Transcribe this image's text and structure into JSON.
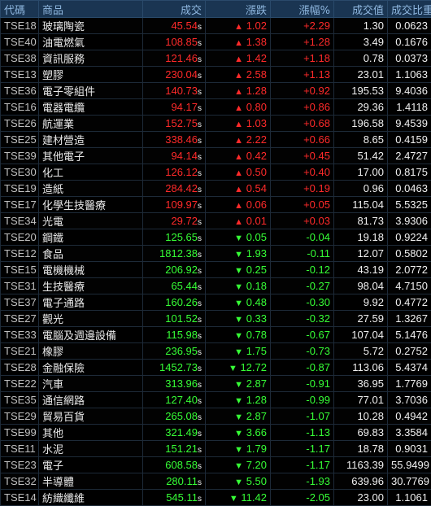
{
  "headers": [
    "代碼",
    "商品",
    "成交",
    "漲跌",
    "漲幅%",
    "成交值",
    "成交比重%"
  ],
  "rows": [
    {
      "code": "TSE18",
      "name": "玻璃陶瓷",
      "price": "45.54",
      "trend": "up",
      "change": "1.02",
      "pct": "+2.29",
      "value": "1.30",
      "weight": "0.0623"
    },
    {
      "code": "TSE40",
      "name": "油電燃氣",
      "price": "108.85",
      "trend": "up",
      "change": "1.38",
      "pct": "+1.28",
      "value": "3.49",
      "weight": "0.1676"
    },
    {
      "code": "TSE38",
      "name": "資訊服務",
      "price": "121.46",
      "trend": "up",
      "change": "1.42",
      "pct": "+1.18",
      "value": "0.78",
      "weight": "0.0373"
    },
    {
      "code": "TSE13",
      "name": "塑膠",
      "price": "230.04",
      "trend": "up",
      "change": "2.58",
      "pct": "+1.13",
      "value": "23.01",
      "weight": "1.1063"
    },
    {
      "code": "TSE36",
      "name": "電子零組件",
      "price": "140.73",
      "trend": "up",
      "change": "1.28",
      "pct": "+0.92",
      "value": "195.53",
      "weight": "9.4036"
    },
    {
      "code": "TSE16",
      "name": "電器電纜",
      "price": "94.17",
      "trend": "up",
      "change": "0.80",
      "pct": "+0.86",
      "value": "29.36",
      "weight": "1.4118"
    },
    {
      "code": "TSE26",
      "name": "航運業",
      "price": "152.75",
      "trend": "up",
      "change": "1.03",
      "pct": "+0.68",
      "value": "196.58",
      "weight": "9.4539"
    },
    {
      "code": "TSE25",
      "name": "建材營造",
      "price": "338.46",
      "trend": "up",
      "change": "2.22",
      "pct": "+0.66",
      "value": "8.65",
      "weight": "0.4159"
    },
    {
      "code": "TSE39",
      "name": "其他電子",
      "price": "94.14",
      "trend": "up",
      "change": "0.42",
      "pct": "+0.45",
      "value": "51.42",
      "weight": "2.4727"
    },
    {
      "code": "TSE30",
      "name": "化工",
      "price": "126.12",
      "trend": "up",
      "change": "0.50",
      "pct": "+0.40",
      "value": "17.00",
      "weight": "0.8175"
    },
    {
      "code": "TSE19",
      "name": "造紙",
      "price": "284.42",
      "trend": "up",
      "change": "0.54",
      "pct": "+0.19",
      "value": "0.96",
      "weight": "0.0463"
    },
    {
      "code": "TSE17",
      "name": "化學生技醫療",
      "price": "109.97",
      "trend": "up",
      "change": "0.06",
      "pct": "+0.05",
      "value": "115.04",
      "weight": "5.5325"
    },
    {
      "code": "TSE34",
      "name": "光電",
      "price": "29.72",
      "trend": "up",
      "change": "0.01",
      "pct": "+0.03",
      "value": "81.73",
      "weight": "3.9306"
    },
    {
      "code": "TSE20",
      "name": "鋼鐵",
      "price": "125.65",
      "trend": "down",
      "change": "0.05",
      "pct": "-0.04",
      "value": "19.18",
      "weight": "0.9224"
    },
    {
      "code": "TSE12",
      "name": "食品",
      "price": "1812.38",
      "trend": "down",
      "change": "1.93",
      "pct": "-0.11",
      "value": "12.07",
      "weight": "0.5802"
    },
    {
      "code": "TSE15",
      "name": "電機機械",
      "price": "206.92",
      "trend": "down",
      "change": "0.25",
      "pct": "-0.12",
      "value": "43.19",
      "weight": "2.0772"
    },
    {
      "code": "TSE31",
      "name": "生技醫療",
      "price": "65.44",
      "trend": "down",
      "change": "0.18",
      "pct": "-0.27",
      "value": "98.04",
      "weight": "4.7150"
    },
    {
      "code": "TSE37",
      "name": "電子通路",
      "price": "160.26",
      "trend": "down",
      "change": "0.48",
      "pct": "-0.30",
      "value": "9.92",
      "weight": "0.4772"
    },
    {
      "code": "TSE27",
      "name": "觀光",
      "price": "101.52",
      "trend": "down",
      "change": "0.33",
      "pct": "-0.32",
      "value": "27.59",
      "weight": "1.3267"
    },
    {
      "code": "TSE33",
      "name": "電腦及週邊設備",
      "price": "115.98",
      "trend": "down",
      "change": "0.78",
      "pct": "-0.67",
      "value": "107.04",
      "weight": "5.1476"
    },
    {
      "code": "TSE21",
      "name": "橡膠",
      "price": "236.95",
      "trend": "down",
      "change": "1.75",
      "pct": "-0.73",
      "value": "5.72",
      "weight": "0.2752"
    },
    {
      "code": "TSE28",
      "name": "金融保險",
      "price": "1452.73",
      "trend": "down",
      "change": "12.72",
      "pct": "-0.87",
      "value": "113.06",
      "weight": "5.4374"
    },
    {
      "code": "TSE22",
      "name": "汽車",
      "price": "313.96",
      "trend": "down",
      "change": "2.87",
      "pct": "-0.91",
      "value": "36.95",
      "weight": "1.7769"
    },
    {
      "code": "TSE35",
      "name": "通信網路",
      "price": "127.40",
      "trend": "down",
      "change": "1.28",
      "pct": "-0.99",
      "value": "77.01",
      "weight": "3.7036"
    },
    {
      "code": "TSE29",
      "name": "貿易百貨",
      "price": "265.08",
      "trend": "down",
      "change": "2.87",
      "pct": "-1.07",
      "value": "10.28",
      "weight": "0.4942"
    },
    {
      "code": "TSE99",
      "name": "其他",
      "price": "321.49",
      "trend": "down",
      "change": "3.66",
      "pct": "-1.13",
      "value": "69.83",
      "weight": "3.3584"
    },
    {
      "code": "TSE11",
      "name": "水泥",
      "price": "151.21",
      "trend": "down",
      "change": "1.79",
      "pct": "-1.17",
      "value": "18.78",
      "weight": "0.9031"
    },
    {
      "code": "TSE23",
      "name": "電子",
      "price": "608.58",
      "trend": "down",
      "change": "7.20",
      "pct": "-1.17",
      "value": "1163.39",
      "weight": "55.9499"
    },
    {
      "code": "TSE32",
      "name": "半導體",
      "price": "280.11",
      "trend": "down",
      "change": "5.50",
      "pct": "-1.93",
      "value": "639.96",
      "weight": "30.7769"
    },
    {
      "code": "TSE14",
      "name": "紡織纖維",
      "price": "545.11",
      "trend": "down",
      "change": "11.42",
      "pct": "-2.05",
      "value": "23.00",
      "weight": "1.1061"
    }
  ],
  "suffix": "s",
  "icons": {
    "up": "triangle-up-icon",
    "down": "triangle-down-icon"
  },
  "colors": {
    "up": "#ff2a2a",
    "down": "#36ff36",
    "header_bg": "#1a3552",
    "header_text": "#8fb7df"
  }
}
